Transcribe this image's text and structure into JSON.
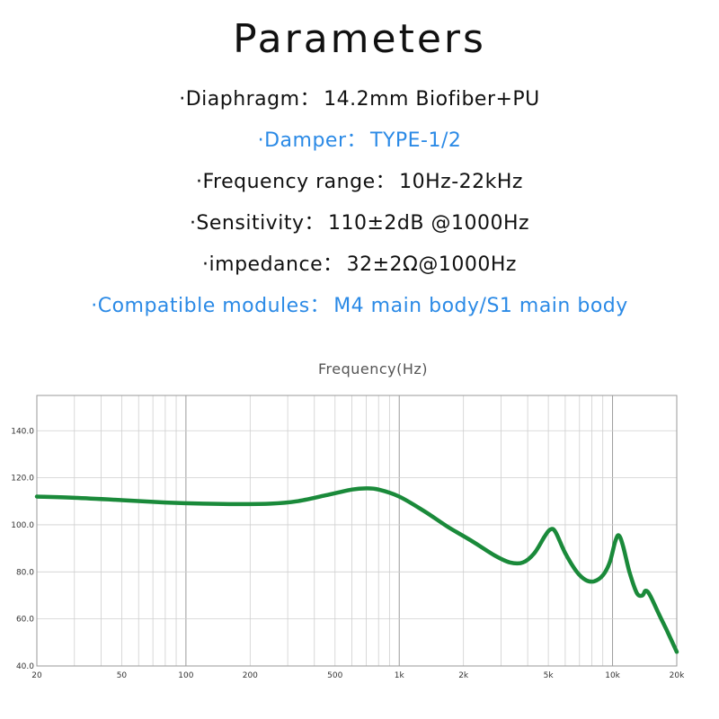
{
  "title": "Parameters",
  "specs": [
    {
      "label": "·Diaphragm",
      "sep": "：",
      "value": "14.2mm Biofiber+PU",
      "color": "#111111"
    },
    {
      "label": "·Damper",
      "sep": "：",
      "value": "TYPE-1/2",
      "color": "#2b8ae6"
    },
    {
      "label": "·Frequency range",
      "sep": "：",
      "value": "10Hz-22kHz",
      "color": "#111111"
    },
    {
      "label": "·Sensitivity",
      "sep": "：",
      "value": "110±2dB @1000Hz",
      "color": "#111111"
    },
    {
      "label": "·impedance",
      "sep": "：",
      "value": "32±2Ω@1000Hz",
      "color": "#111111"
    },
    {
      "label": "·Compatible modules",
      "sep": "：",
      "value": "M4 main body/S1 main body",
      "color": "#2b8ae6"
    }
  ],
  "chart_data": {
    "type": "line",
    "title": "Frequency(Hz)",
    "xscale": "log",
    "xlim": [
      20,
      20000
    ],
    "ylim": [
      40,
      155
    ],
    "x_ticks": [
      20,
      50,
      100,
      200,
      500,
      1000,
      2000,
      5000,
      10000,
      20000
    ],
    "x_tick_labels": [
      "20",
      "50",
      "100",
      "200",
      "500",
      "1k",
      "2k",
      "5k",
      "10k",
      "20k"
    ],
    "y_ticks": [
      40,
      60,
      80,
      100,
      120,
      140
    ],
    "y_tick_labels": [
      "40.0",
      "60.0",
      "80.0",
      "100.0",
      "120.0",
      "140.0"
    ],
    "grid": true,
    "series": [
      {
        "color": "#1a8a3a",
        "points": [
          [
            20,
            112
          ],
          [
            30,
            111.5
          ],
          [
            50,
            110.5
          ],
          [
            80,
            109.5
          ],
          [
            120,
            109
          ],
          [
            180,
            108.8
          ],
          [
            250,
            109
          ],
          [
            330,
            110
          ],
          [
            450,
            112.5
          ],
          [
            600,
            115
          ],
          [
            700,
            115.5
          ],
          [
            800,
            115
          ],
          [
            1000,
            112
          ],
          [
            1300,
            106
          ],
          [
            1700,
            99
          ],
          [
            2200,
            93
          ],
          [
            2800,
            87
          ],
          [
            3300,
            84
          ],
          [
            3800,
            84
          ],
          [
            4300,
            88
          ],
          [
            4800,
            95
          ],
          [
            5100,
            98
          ],
          [
            5400,
            97
          ],
          [
            6000,
            88
          ],
          [
            6800,
            80
          ],
          [
            7500,
            76.5
          ],
          [
            8200,
            76
          ],
          [
            9000,
            78.5
          ],
          [
            9700,
            84
          ],
          [
            10300,
            93
          ],
          [
            10700,
            95.5
          ],
          [
            11200,
            91
          ],
          [
            12000,
            80
          ],
          [
            13000,
            71
          ],
          [
            13800,
            70
          ],
          [
            14300,
            72
          ],
          [
            15000,
            70
          ],
          [
            16500,
            62
          ],
          [
            18000,
            55
          ],
          [
            20000,
            46
          ]
        ]
      }
    ]
  }
}
